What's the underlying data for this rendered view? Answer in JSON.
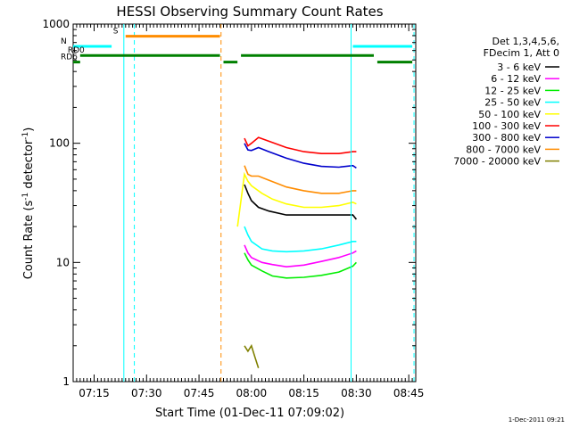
{
  "chart_data": {
    "type": "line",
    "title": "HESSI Observing Summary Count Rates",
    "xlabel": "Start Time (01-Dec-11 07:09:02)",
    "ylabel_main": "Count Rate (s",
    "ylabel_sup1": "-1",
    "ylabel_mid": " detector",
    "ylabel_sup2": "-1",
    "ylabel_end": ")",
    "yscale": "log",
    "ylim": [
      1,
      1000
    ],
    "xlim": [
      "07:09",
      "08:47"
    ],
    "yticks": [
      {
        "value": 1,
        "label": "1"
      },
      {
        "value": 10,
        "label": "10"
      },
      {
        "value": 100,
        "label": "100"
      },
      {
        "value": 1000,
        "label": "1000"
      }
    ],
    "xticks": [
      {
        "value": "07:15",
        "label": "07:15"
      },
      {
        "value": "07:30",
        "label": "07:30"
      },
      {
        "value": "07:45",
        "label": "07:45"
      },
      {
        "value": "08:00",
        "label": "08:00"
      },
      {
        "value": "08:15",
        "label": "08:15"
      },
      {
        "value": "08:30",
        "label": "08:30"
      },
      {
        "value": "08:45",
        "label": "08:45"
      }
    ],
    "legend": {
      "position": "right",
      "header1": "Det 1,3,4,5,6,",
      "header2": "FDecim 1, Att 0"
    },
    "series": [
      {
        "name": "3 - 6 keV",
        "color": "#000000",
        "points": [
          [
            "07:58",
            45
          ],
          [
            "07:59",
            38
          ],
          [
            "08:00",
            33
          ],
          [
            "08:02",
            29
          ],
          [
            "08:05",
            27
          ],
          [
            "08:10",
            25
          ],
          [
            "08:15",
            25
          ],
          [
            "08:20",
            25
          ],
          [
            "08:25",
            25
          ],
          [
            "08:29",
            25
          ],
          [
            "08:30",
            23
          ]
        ]
      },
      {
        "name": "6 - 12 keV",
        "color": "#ff00ff",
        "points": [
          [
            "07:58",
            14
          ],
          [
            "07:59",
            12
          ],
          [
            "08:00",
            11
          ],
          [
            "08:03",
            10
          ],
          [
            "08:06",
            9.6
          ],
          [
            "08:10",
            9.2
          ],
          [
            "08:15",
            9.5
          ],
          [
            "08:20",
            10.2
          ],
          [
            "08:25",
            11
          ],
          [
            "08:29",
            12
          ],
          [
            "08:30",
            12.5
          ]
        ]
      },
      {
        "name": "12 - 25 keV",
        "color": "#00ee00",
        "points": [
          [
            "07:58",
            12
          ],
          [
            "07:59",
            10.5
          ],
          [
            "08:00",
            9.5
          ],
          [
            "08:03",
            8.5
          ],
          [
            "08:06",
            7.7
          ],
          [
            "08:10",
            7.4
          ],
          [
            "08:15",
            7.5
          ],
          [
            "08:20",
            7.8
          ],
          [
            "08:25",
            8.3
          ],
          [
            "08:29",
            9.3
          ],
          [
            "08:30",
            10
          ]
        ]
      },
      {
        "name": "25 - 50 keV",
        "color": "#00ffff",
        "points": [
          [
            "07:58",
            20
          ],
          [
            "07:59",
            17
          ],
          [
            "08:00",
            15
          ],
          [
            "08:03",
            13
          ],
          [
            "08:06",
            12.5
          ],
          [
            "08:10",
            12.3
          ],
          [
            "08:15",
            12.5
          ],
          [
            "08:20",
            13
          ],
          [
            "08:25",
            14
          ],
          [
            "08:29",
            15
          ],
          [
            "08:30",
            15
          ]
        ]
      },
      {
        "name": "50 - 100 keV",
        "color": "#ffff00",
        "points": [
          [
            "07:56",
            20
          ],
          [
            "07:58",
            55
          ],
          [
            "07:59",
            48
          ],
          [
            "08:00",
            44
          ],
          [
            "08:03",
            38
          ],
          [
            "08:06",
            34
          ],
          [
            "08:10",
            31
          ],
          [
            "08:15",
            29
          ],
          [
            "08:20",
            29
          ],
          [
            "08:25",
            30
          ],
          [
            "08:29",
            32
          ],
          [
            "08:30",
            31
          ]
        ]
      },
      {
        "name": "100 - 300 keV",
        "color": "#ff0000",
        "points": [
          [
            "07:58",
            110
          ],
          [
            "07:59",
            95
          ],
          [
            "08:00",
            100
          ],
          [
            "08:02",
            112
          ],
          [
            "08:05",
            104
          ],
          [
            "08:10",
            92
          ],
          [
            "08:15",
            85
          ],
          [
            "08:20",
            82
          ],
          [
            "08:25",
            82
          ],
          [
            "08:29",
            85
          ],
          [
            "08:30",
            85
          ]
        ]
      },
      {
        "name": "300 - 800 keV",
        "color": "#0000cc",
        "points": [
          [
            "07:58",
            100
          ],
          [
            "07:59",
            88
          ],
          [
            "08:00",
            87
          ],
          [
            "08:02",
            92
          ],
          [
            "08:05",
            85
          ],
          [
            "08:10",
            75
          ],
          [
            "08:15",
            68
          ],
          [
            "08:20",
            64
          ],
          [
            "08:25",
            63
          ],
          [
            "08:29",
            65
          ],
          [
            "08:30",
            62
          ]
        ]
      },
      {
        "name": "800 - 7000 keV",
        "color": "#ff8c00",
        "points": [
          [
            "07:58",
            65
          ],
          [
            "07:59",
            55
          ],
          [
            "08:00",
            53
          ],
          [
            "08:02",
            53
          ],
          [
            "08:05",
            49
          ],
          [
            "08:10",
            43
          ],
          [
            "08:15",
            40
          ],
          [
            "08:20",
            38
          ],
          [
            "08:25",
            38
          ],
          [
            "08:29",
            40
          ],
          [
            "08:30",
            40
          ]
        ]
      },
      {
        "name": "7000 - 20000 keV",
        "color": "#808000",
        "points": [
          [
            "07:58",
            2
          ],
          [
            "07:59",
            1.8
          ],
          [
            "08:00",
            2
          ],
          [
            "08:01",
            1.6
          ],
          [
            "08:02",
            1.3
          ]
        ]
      }
    ],
    "flags": [
      {
        "label": "S",
        "color": "#ff8c00",
        "start": "07:24",
        "end": "07:51",
        "level": 790
      },
      {
        "label": "N",
        "color": "#00ffff",
        "start": "07:09",
        "end": "07:20",
        "level": 650
      },
      {
        "label": "",
        "color": "#00ffff",
        "start": "08:29",
        "end": "08:46",
        "level": 650
      },
      {
        "label": "RD0",
        "color": "#008000",
        "start": "07:11",
        "end": "07:51",
        "level": 545
      },
      {
        "label": "",
        "color": "#008000",
        "start": "07:52",
        "end": "07:56",
        "level": 480
      },
      {
        "label": "",
        "color": "#008000",
        "start": "07:57",
        "end": "08:35",
        "level": 545
      },
      {
        "label": "",
        "color": "#008000",
        "start": "08:36",
        "end": "08:46",
        "level": 480
      },
      {
        "label": "RD6",
        "color": "#008000",
        "start": "07:09",
        "end": "07:11",
        "level": 480
      }
    ],
    "vlines": [
      {
        "time": "07:23.5",
        "color": "#00ffff",
        "style": "solid"
      },
      {
        "time": "07:26.5",
        "color": "#00ffff",
        "style": "dashed"
      },
      {
        "time": "07:51.3",
        "color": "#ff8c00",
        "style": "dashed"
      },
      {
        "time": "08:28.5",
        "color": "#00ffff",
        "style": "solid"
      },
      {
        "time": "08:46.5",
        "color": "#00ffff",
        "style": "dashed"
      }
    ]
  },
  "footer": {
    "date_stamp": "1-Dec-2011 09:21"
  }
}
